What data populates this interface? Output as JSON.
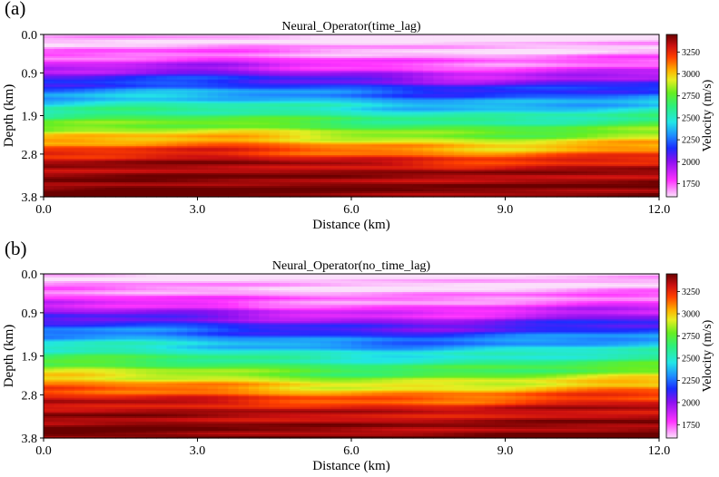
{
  "chart_data": [
    {
      "type": "heatmap",
      "panel_label": "(a)",
      "title": "Neural_Operator(time_lag)",
      "xlabel": "Distance (km)",
      "ylabel": "Depth (km)",
      "xlim": [
        0,
        12
      ],
      "ylim": [
        3.8,
        0
      ],
      "x_ticks": [
        "0.0",
        "3.0",
        "6.0",
        "9.0",
        "12.0"
      ],
      "y_ticks": [
        "0.0",
        "0.9",
        "1.9",
        "2.8",
        "3.8"
      ],
      "colorbar": {
        "label": "Velocity (m/s)",
        "range": [
          1600,
          3450
        ],
        "ticks": [
          "1750",
          "2000",
          "2250",
          "2500",
          "2750",
          "3000",
          "3250"
        ]
      },
      "velocity_profile": {
        "depth_km": [
          0.0,
          0.3,
          0.7,
          1.0,
          1.4,
          1.8,
          2.2,
          2.6,
          3.0,
          3.8
        ],
        "velocity_ms": [
          1600,
          1650,
          1800,
          2050,
          2300,
          2550,
          2800,
          3100,
          3350,
          3450
        ]
      }
    },
    {
      "type": "heatmap",
      "panel_label": "(b)",
      "title": "Neural_Operator(no_time_lag)",
      "xlabel": "Distance (km)",
      "ylabel": "Depth (km)",
      "xlim": [
        0,
        12
      ],
      "ylim": [
        3.8,
        0
      ],
      "x_ticks": [
        "0.0",
        "3.0",
        "6.0",
        "9.0",
        "12.0"
      ],
      "y_ticks": [
        "0.0",
        "0.9",
        "1.9",
        "2.8",
        "3.8"
      ],
      "colorbar": {
        "label": "Velocity (m/s)",
        "range": [
          1600,
          3450
        ],
        "ticks": [
          "1750",
          "2000",
          "2250",
          "2500",
          "2750",
          "3000",
          "3250"
        ]
      },
      "velocity_profile": {
        "depth_km": [
          0.0,
          0.3,
          0.7,
          1.0,
          1.4,
          1.8,
          2.2,
          2.6,
          3.0,
          3.8
        ],
        "velocity_ms": [
          1600,
          1650,
          1780,
          2000,
          2250,
          2500,
          2750,
          3050,
          3300,
          3450
        ]
      }
    }
  ]
}
